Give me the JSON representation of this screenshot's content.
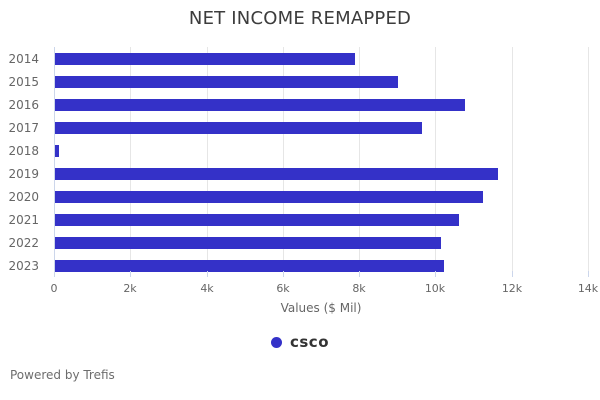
{
  "title": "NET INCOME REMAPPED",
  "chart_data": {
    "type": "bar",
    "orientation": "horizontal",
    "title": "NET INCOME REMAPPED",
    "categories": [
      "2014",
      "2015",
      "2016",
      "2017",
      "2018",
      "2019",
      "2020",
      "2021",
      "2022",
      "2023"
    ],
    "series": [
      {
        "name": "csco",
        "values": [
          7853,
          8981,
          10739,
          9609,
          110,
          11621,
          11214,
          10591,
          10120,
          10200
        ]
      }
    ],
    "xlabel": "Values ($ Mil)",
    "ylabel": "",
    "xlim": [
      0,
      14000
    ],
    "xticks": {
      "values": [
        0,
        2000,
        4000,
        6000,
        8000,
        10000,
        12000,
        14000
      ],
      "labels": [
        "0",
        "2k",
        "4k",
        "6k",
        "8k",
        "10k",
        "12k",
        "14k"
      ]
    },
    "grid": true,
    "legend_position": "bottom",
    "bar_color": "#3431c8"
  },
  "legend": {
    "items": [
      {
        "label": "csco",
        "color": "#3431c8"
      }
    ]
  },
  "footer": {
    "text": "Powered by Trefis"
  },
  "colors": {
    "background": "#ffffff",
    "bar": "#3431c8",
    "gridline": "#e6e6e6",
    "axis_line": "#ccd6eb",
    "title_text": "#3c3c3c",
    "axis_text": "#666666",
    "legend_text": "#333333",
    "footer_text": "#6d6d6d"
  }
}
